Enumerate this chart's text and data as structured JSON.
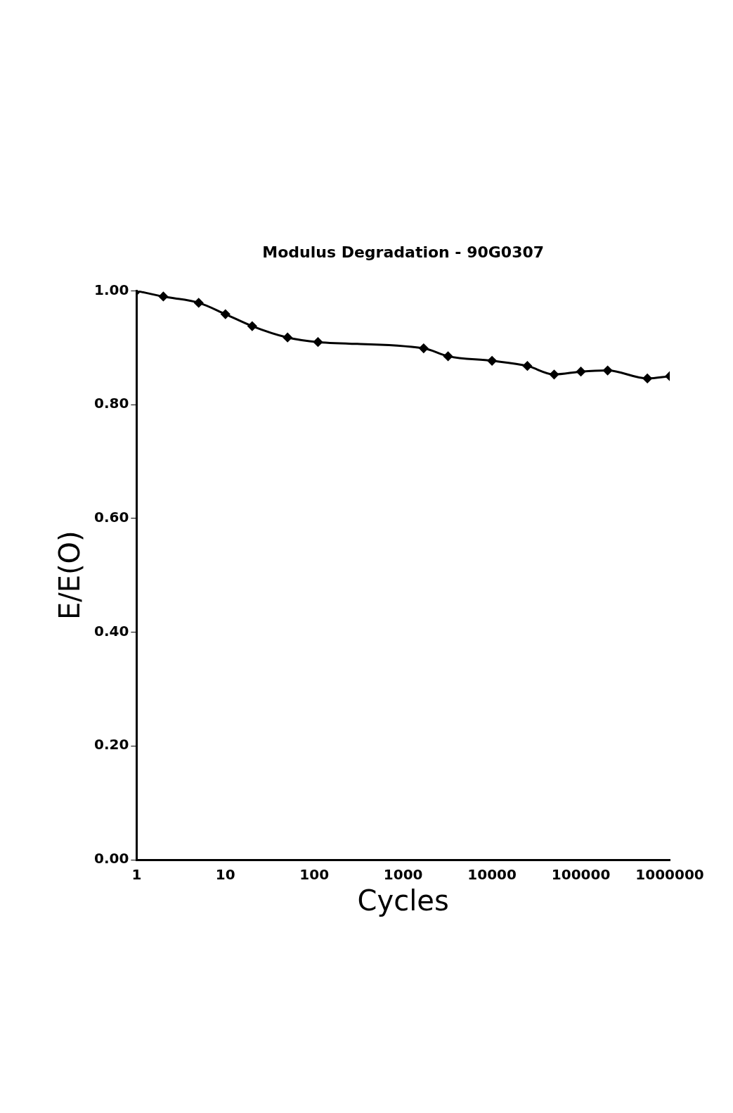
{
  "chart_data": {
    "type": "line",
    "title": "Modulus Degradation - 90G0307",
    "xlabel": "Cycles",
    "ylabel": "E/E(O)",
    "x": [
      1,
      2,
      5,
      10,
      20,
      50,
      110,
      1700,
      3200,
      10000,
      25000,
      50000,
      100000,
      200000,
      560000,
      1000000
    ],
    "series": [
      {
        "color": "#000000",
        "values": [
          1.0,
          0.99,
          0.979,
          0.959,
          0.938,
          0.918,
          0.91,
          0.899,
          0.885,
          0.877,
          0.868,
          0.853,
          0.858,
          0.86,
          0.846,
          0.85
        ]
      }
    ],
    "log": "x",
    "xlim": [
      1,
      1000000
    ],
    "xticks": [
      1,
      10,
      100,
      1000,
      10000,
      100000,
      1000000
    ],
    "ylim": [
      0,
      1
    ],
    "yticks": [
      {
        "value": 0,
        "label": "0.00"
      },
      {
        "value": 0.2,
        "label": "0.20"
      },
      {
        "value": 0.4,
        "label": "0.40"
      },
      {
        "value": 0.6,
        "label": "0.60"
      },
      {
        "value": 0.8,
        "label": "0.80"
      },
      {
        "value": 1,
        "label": "1.00"
      }
    ],
    "grid": false,
    "legend": false,
    "marker": "diamond",
    "line_style": "solid"
  }
}
